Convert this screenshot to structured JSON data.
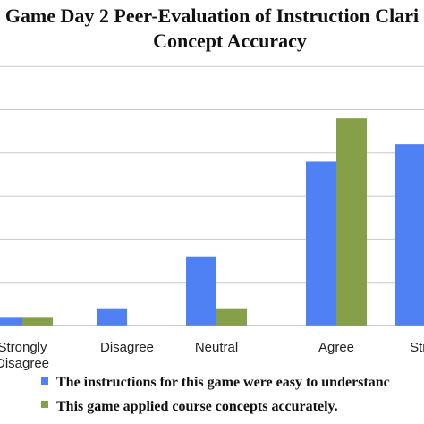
{
  "chart_data": {
    "type": "bar",
    "title_lines": [
      "Game Day 2 Peer-Evaluation of Instruction Clari",
      "Concept Accuracy"
    ],
    "categories": [
      "Strongly Disagree",
      "Disagree",
      "Neutral",
      "Agree",
      "Strongly Agree"
    ],
    "category_label_lines": [
      [
        "Strongly",
        "Disagree"
      ],
      [
        "Disagree"
      ],
      [
        "Neutral"
      ],
      [
        "Agree"
      ],
      [
        "Stron"
      ]
    ],
    "series": [
      {
        "name": "The instructions for this game were easy to understand.",
        "legend_text": "The instructions for this game were easy to understanc",
        "color": "#4F81F5",
        "values": [
          0.2,
          0.4,
          1.6,
          3.8,
          4.2
        ]
      },
      {
        "name": "This game applied course concepts accurately.",
        "legend_text": "This game applied course concepts accurately.",
        "color": "#86A04A",
        "values": [
          0.2,
          0.0,
          0.4,
          4.8,
          0.0
        ]
      }
    ],
    "ylim": [
      0,
      6
    ],
    "grid": true,
    "legend_placement": "bottom"
  }
}
